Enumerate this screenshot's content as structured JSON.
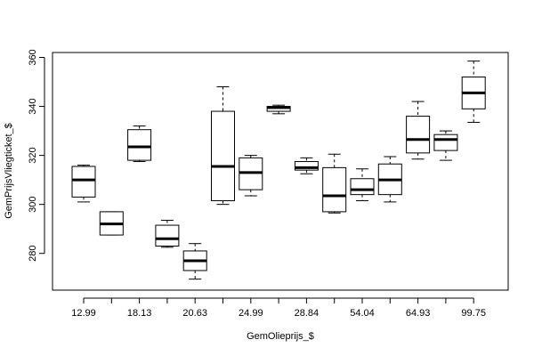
{
  "chart_data": {
    "type": "box",
    "xlabel": "GemOlieprijs_$",
    "ylabel": "GemPrijsVliegticket_$",
    "ylim": [
      265,
      362
    ],
    "yticks": [
      280,
      300,
      320,
      340,
      360
    ],
    "shown_xtick_labels": [
      "12.99",
      "18.13",
      "20.63",
      "24.99",
      "28.84",
      "54.04",
      "64.93",
      "99.75"
    ],
    "grid": false,
    "boxes": [
      {
        "label": "12.99",
        "whisker_low": 301,
        "q1": 303,
        "median": 310,
        "q3": 315.5,
        "whisker_high": 316
      },
      {
        "label": "",
        "whisker_low": 287.5,
        "q1": 287.5,
        "median": 292,
        "q3": 297,
        "whisker_high": 297
      },
      {
        "label": "18.13",
        "whisker_low": 317.5,
        "q1": 318,
        "median": 323.5,
        "q3": 330.5,
        "whisker_high": 332
      },
      {
        "label": "",
        "whisker_low": 282.5,
        "q1": 283,
        "median": 286,
        "q3": 291.5,
        "whisker_high": 293.5
      },
      {
        "label": "20.63",
        "whisker_low": 269.5,
        "q1": 273,
        "median": 277,
        "q3": 281,
        "whisker_high": 284
      },
      {
        "label": "",
        "whisker_low": 300,
        "q1": 301.5,
        "median": 315.5,
        "q3": 338,
        "whisker_high": 348
      },
      {
        "label": "24.99",
        "whisker_low": 303.5,
        "q1": 306,
        "median": 313,
        "q3": 319,
        "whisker_high": 320
      },
      {
        "label": "",
        "whisker_low": 337,
        "q1": 338,
        "median": 339.5,
        "q3": 340,
        "whisker_high": 340.5
      },
      {
        "label": "28.84",
        "whisker_low": 312.5,
        "q1": 314,
        "median": 315,
        "q3": 317.5,
        "whisker_high": 319
      },
      {
        "label": "",
        "whisker_low": 296.5,
        "q1": 297,
        "median": 303.5,
        "q3": 315,
        "whisker_high": 320.5
      },
      {
        "label": "54.04",
        "whisker_low": 301.5,
        "q1": 304,
        "median": 306,
        "q3": 310.5,
        "whisker_high": 314.5
      },
      {
        "label": "",
        "whisker_low": 301,
        "q1": 304,
        "median": 310,
        "q3": 316.5,
        "whisker_high": 319.5
      },
      {
        "label": "64.93",
        "whisker_low": 318.5,
        "q1": 321,
        "median": 326.5,
        "q3": 336,
        "whisker_high": 342
      },
      {
        "label": "",
        "whisker_low": 318,
        "q1": 322,
        "median": 326.5,
        "q3": 328.5,
        "whisker_high": 330
      },
      {
        "label": "99.75",
        "whisker_low": 333.5,
        "q1": 339,
        "median": 345.5,
        "q3": 352,
        "whisker_high": 358.5
      }
    ]
  }
}
